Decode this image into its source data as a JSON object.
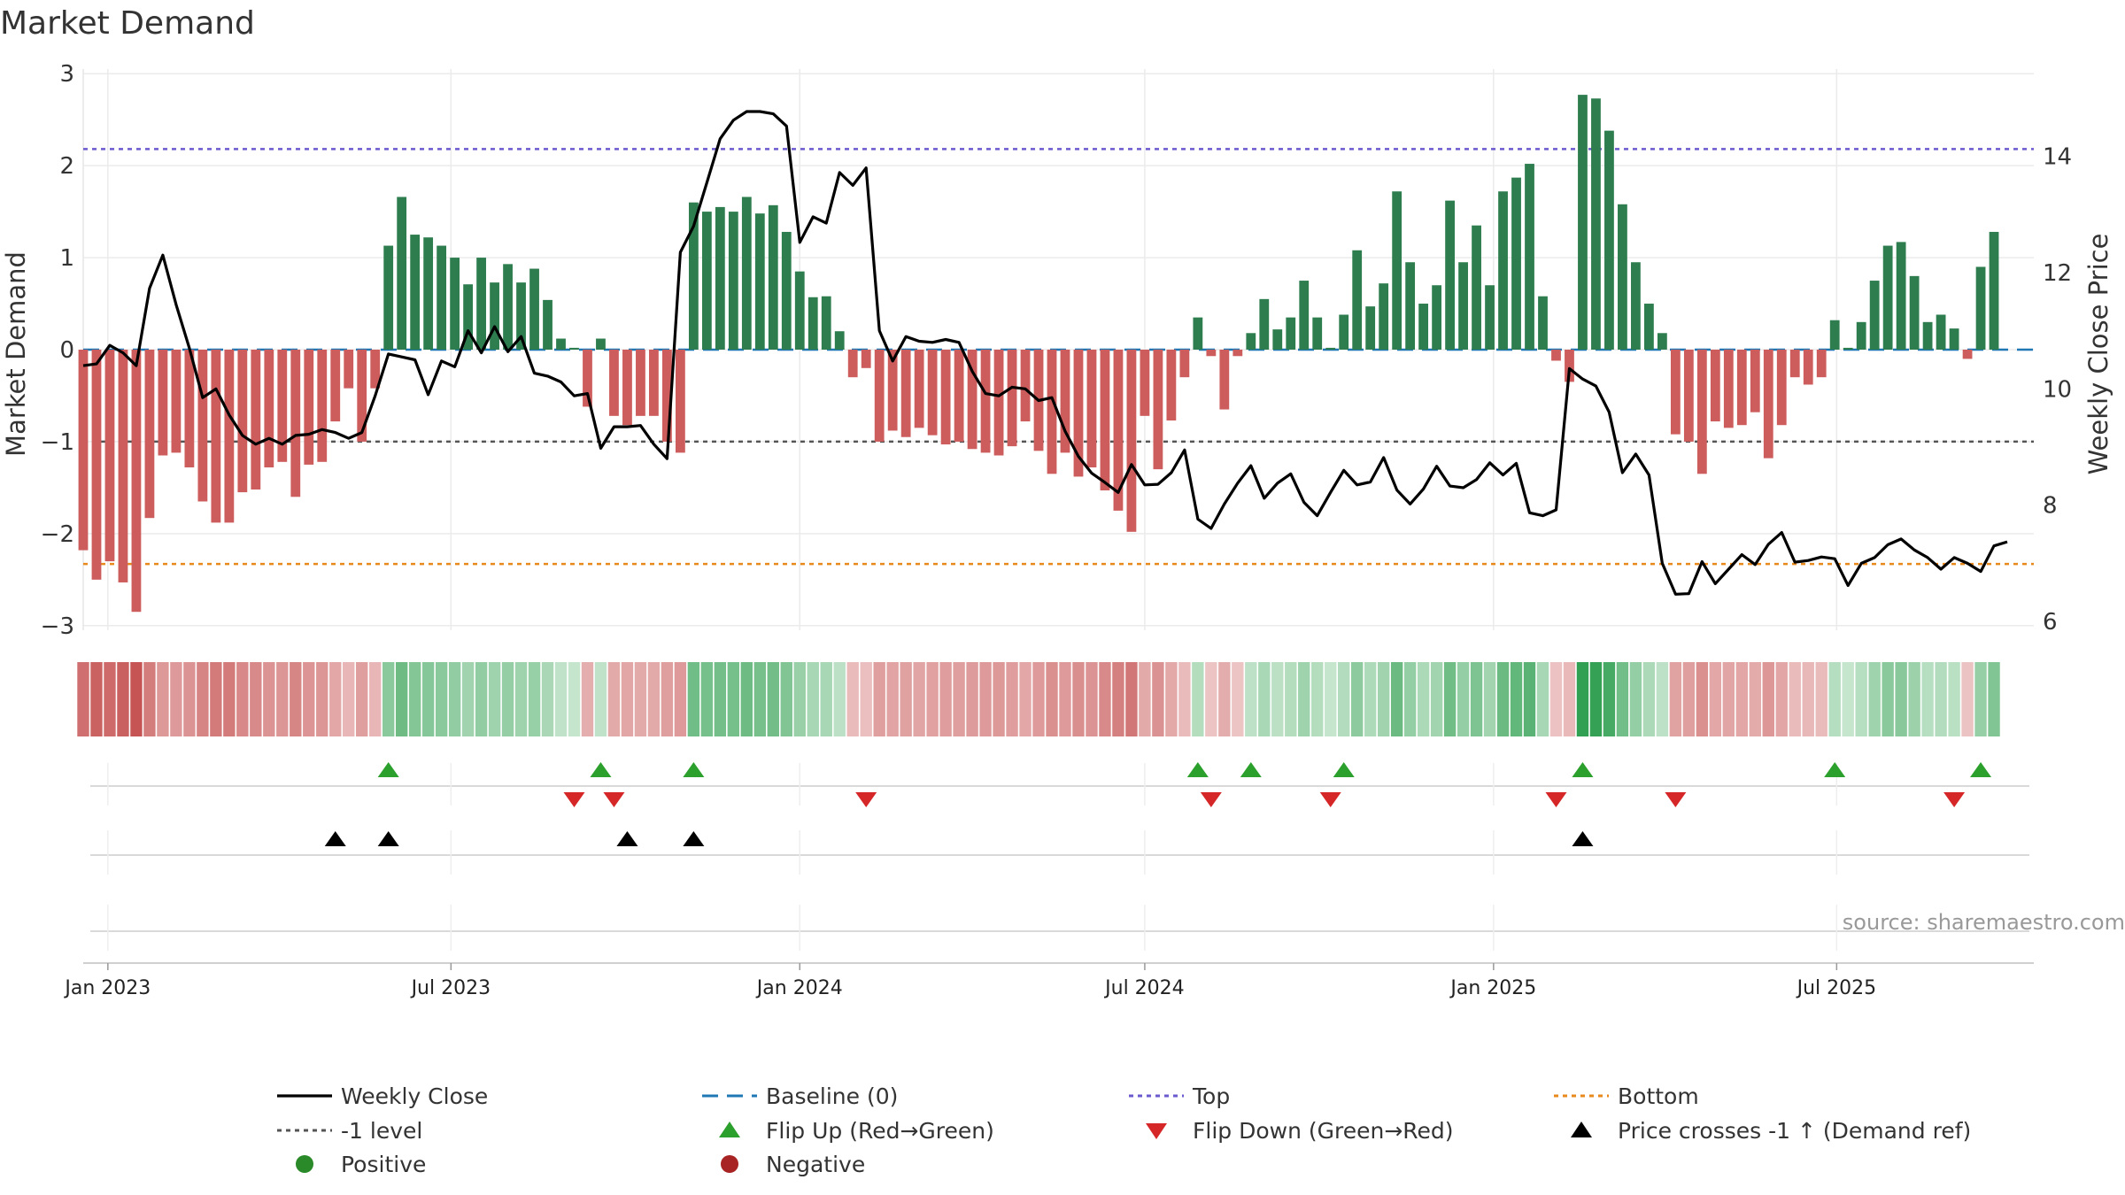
{
  "chart_data": {
    "type": "bar",
    "title": "Market Demand",
    "ylabel": "Market Demand",
    "y2label": "Weekly Close Price",
    "ylim": [
      -3.05,
      3.05
    ],
    "y2lim": [
      5.85,
      15.5
    ],
    "yticks": [
      3,
      2,
      1,
      0,
      -1,
      -2,
      -3
    ],
    "ytick_labels": [
      "3",
      "2",
      "1",
      "0",
      "−1",
      "−2",
      "−3"
    ],
    "y2ticks": [
      14,
      12,
      10,
      8,
      6
    ],
    "y2tick_labels": [
      "14",
      "12",
      "10",
      "8",
      "6"
    ],
    "x_range": [
      "2022-12-19",
      "2025-10-13"
    ],
    "xticks": [
      "2023-01-01",
      "2023-07-01",
      "2024-01-01",
      "2024-07-01",
      "2025-01-01",
      "2025-07-01"
    ],
    "xtick_labels": [
      "Jan 2023",
      "Jul 2023",
      "Jan 2024",
      "Jul 2024",
      "Jan 2025",
      "Jul 2025"
    ],
    "start_date": "2022-12-19",
    "step_days": 7,
    "demand": [
      -2.18,
      -2.5,
      -2.3,
      -2.53,
      -2.85,
      -1.83,
      -1.15,
      -1.12,
      -1.28,
      -1.65,
      -1.88,
      -1.88,
      -1.55,
      -1.52,
      -1.28,
      -1.22,
      -1.6,
      -1.25,
      -1.22,
      -0.78,
      -0.42,
      -1.0,
      -0.42,
      1.13,
      1.66,
      1.25,
      1.22,
      1.13,
      1.0,
      0.71,
      1.0,
      0.73,
      0.93,
      0.73,
      0.88,
      0.54,
      0.12,
      0.02,
      -0.62,
      0.12,
      -0.72,
      -0.82,
      -0.72,
      -0.72,
      -1.0,
      -1.12,
      1.6,
      1.5,
      1.55,
      1.5,
      1.66,
      1.48,
      1.57,
      1.28,
      0.85,
      0.57,
      0.58,
      0.2,
      -0.3,
      -0.2,
      -1.0,
      -0.88,
      -0.95,
      -0.85,
      -0.93,
      -1.03,
      -1.0,
      -1.08,
      -1.12,
      -1.15,
      -1.05,
      -0.78,
      -1.1,
      -1.35,
      -1.12,
      -1.38,
      -1.28,
      -1.53,
      -1.75,
      -1.98,
      -0.72,
      -1.3,
      -0.77,
      -0.3,
      0.35,
      -0.07,
      -0.65,
      -0.07,
      0.18,
      0.55,
      0.22,
      0.35,
      0.75,
      0.35,
      0.02,
      0.38,
      1.08,
      0.47,
      0.72,
      1.72,
      0.95,
      0.5,
      0.7,
      1.62,
      0.95,
      1.35,
      0.7,
      1.72,
      1.87,
      2.02,
      0.58,
      -0.12,
      -0.35,
      2.77,
      2.73,
      2.38,
      1.58,
      0.95,
      0.5,
      0.18,
      -0.92,
      -1.0,
      -1.35,
      -0.78,
      -0.85,
      -0.82,
      -0.68,
      -1.18,
      -0.82,
      -0.3,
      -0.38,
      -0.3,
      0.32,
      0.02,
      0.3,
      0.75,
      1.13,
      1.17,
      0.8,
      0.3,
      0.38,
      0.23,
      -0.1,
      0.9,
      1.28
    ],
    "close": [
      10.4,
      10.43,
      10.75,
      10.62,
      10.4,
      11.73,
      12.3,
      11.45,
      10.7,
      9.85,
      10.0,
      9.55,
      9.2,
      9.05,
      9.15,
      9.05,
      9.2,
      9.22,
      9.3,
      9.25,
      9.15,
      9.25,
      9.88,
      10.6,
      10.55,
      10.5,
      9.9,
      10.48,
      10.38,
      11.0,
      10.62,
      11.07,
      10.64,
      10.9,
      10.27,
      10.22,
      10.12,
      9.88,
      9.92,
      8.98,
      9.35,
      9.35,
      9.37,
      9.05,
      8.8,
      12.35,
      12.8,
      13.55,
      14.3,
      14.62,
      14.77,
      14.77,
      14.73,
      14.52,
      12.52,
      12.96,
      12.85,
      13.72,
      13.5,
      13.8,
      11.0,
      10.48,
      10.9,
      10.82,
      10.8,
      10.85,
      10.8,
      10.3,
      9.92,
      9.88,
      10.03,
      10.0,
      9.8,
      9.85,
      9.27,
      8.84,
      8.55,
      8.39,
      8.22,
      8.7,
      8.35,
      8.36,
      8.56,
      8.95,
      7.76,
      7.6,
      8.02,
      8.38,
      8.68,
      8.12,
      8.38,
      8.54,
      8.05,
      7.82,
      8.22,
      8.6,
      8.35,
      8.4,
      8.82,
      8.26,
      8.02,
      8.28,
      8.67,
      8.33,
      8.3,
      8.44,
      8.73,
      8.52,
      8.72,
      7.87,
      7.82,
      7.92,
      10.35,
      10.17,
      10.05,
      9.6,
      8.56,
      8.88,
      8.52,
      7.0,
      6.47,
      6.48,
      7.03,
      6.65,
      6.9,
      7.15,
      6.98,
      7.33,
      7.53,
      7.02,
      7.05,
      7.11,
      7.08,
      6.62,
      7.0,
      7.1,
      7.32,
      7.42,
      7.23,
      7.1,
      6.9,
      7.1,
      7.0,
      6.86,
      7.3,
      7.37
    ],
    "reference_lines": [
      {
        "name": "Top",
        "value": 2.18,
        "color": "#6a5acd",
        "style": "dotted"
      },
      {
        "name": "-1 level",
        "value": -1.0,
        "color": "#555555",
        "style": "dotted"
      },
      {
        "name": "Bottom",
        "value": -2.33,
        "color": "#e8891c",
        "style": "dotted"
      },
      {
        "name": "Baseline (0)",
        "value": 0,
        "color": "#1f77b4",
        "style": "dashed"
      }
    ],
    "flip_up_index": [
      23,
      39,
      46,
      84,
      88,
      95,
      113,
      132,
      143
    ],
    "flip_down_index": [
      37,
      40,
      59,
      85,
      94,
      111,
      120,
      141
    ],
    "price_cross_index": [
      19,
      23,
      41,
      46,
      113
    ],
    "source_text": "source: sharemaestro.com",
    "legend": [
      {
        "label": "Weekly Close",
        "symbol": "line",
        "color": "#000000"
      },
      {
        "label": "Baseline (0)",
        "symbol": "dash",
        "color": "#1f77b4"
      },
      {
        "label": "Top",
        "symbol": "dot-line",
        "color": "#6a5acd"
      },
      {
        "label": "Bottom",
        "symbol": "dot-line",
        "color": "#e8891c"
      },
      {
        "label": "-1 level",
        "symbol": "dot-line",
        "color": "#555555"
      },
      {
        "label": "Flip Up (Red→Green)",
        "symbol": "triangle-up",
        "color": "#2ca02c"
      },
      {
        "label": "Flip Down (Green→Red)",
        "symbol": "triangle-down",
        "color": "#d62728"
      },
      {
        "label": "Price crosses -1 ↑ (Demand ref)",
        "symbol": "triangle-up",
        "color": "#000000"
      },
      {
        "label": "Positive",
        "symbol": "circle",
        "color": "#2a8a2a"
      },
      {
        "label": "Negative",
        "symbol": "circle",
        "color": "#a82424"
      }
    ],
    "colors": {
      "positive": "#2e7d4f",
      "negative": "#cd5c5c",
      "grid": "#e6e6e6",
      "text": "#333333"
    }
  }
}
